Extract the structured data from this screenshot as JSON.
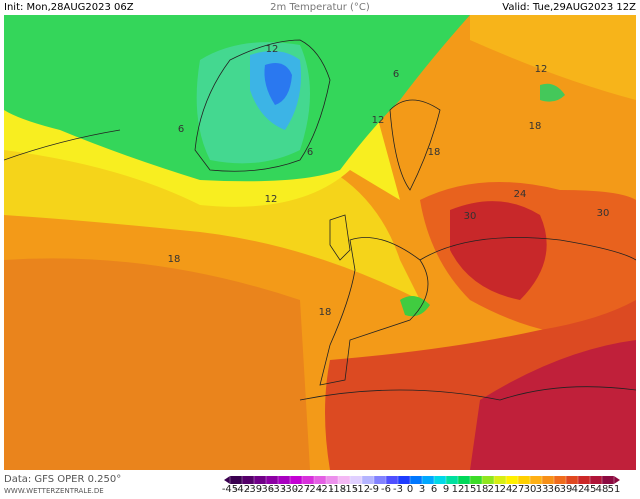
{
  "header": {
    "init": "Init: Mon,28AUG2023 06Z",
    "title": "2m Temperatur (°C)",
    "valid": "Valid: Tue,29AUG2023 12Z"
  },
  "footer": {
    "data": "Data: GFS OPER 0.250°",
    "site": "WWW.WETTERZENTRALE.DE"
  },
  "map": {
    "contour_labels": [
      12,
      6,
      12,
      6,
      12,
      18,
      6,
      18,
      12,
      24,
      30,
      30,
      18,
      18
    ]
  },
  "colorbar": {
    "ticks": [
      -45,
      -42,
      -39,
      -36,
      -33,
      -30,
      -27,
      -24,
      -21,
      -18,
      -15,
      -12,
      -9,
      -6,
      -3,
      0,
      3,
      6,
      9,
      12,
      15,
      18,
      21,
      24,
      27,
      30,
      33,
      36,
      39,
      42,
      45,
      48,
      51
    ],
    "colors": [
      "#3a0050",
      "#55006a",
      "#700088",
      "#8c00a4",
      "#a800c0",
      "#c400d4",
      "#d830dc",
      "#e460e4",
      "#ec90ec",
      "#f4b8f4",
      "#e0d0ff",
      "#b4b4ff",
      "#8282ff",
      "#5050ff",
      "#1e3cff",
      "#0078ff",
      "#00a8ff",
      "#00d8e8",
      "#00e0a0",
      "#00d85a",
      "#3cdc28",
      "#90e61e",
      "#d8ee14",
      "#fff000",
      "#ffd000",
      "#ffb014",
      "#f79018",
      "#f06c1c",
      "#e04820",
      "#cc2828",
      "#b01438",
      "#8c0a40"
    ]
  }
}
